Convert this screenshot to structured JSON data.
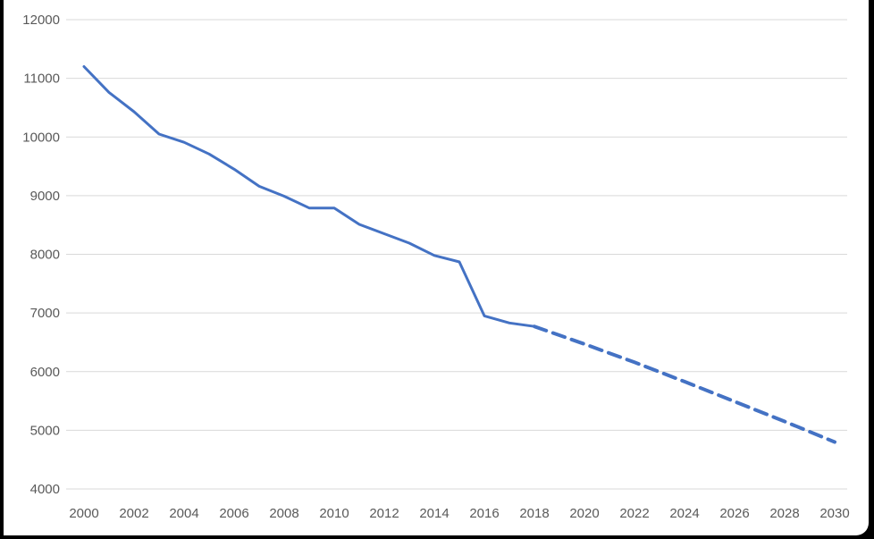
{
  "chart_data": {
    "type": "line",
    "title": "",
    "xlabel": "",
    "ylabel": "",
    "xlim": [
      2000,
      2030
    ],
    "ylim": [
      4000,
      12000
    ],
    "y_ticks": [
      "4000",
      "5000",
      "6000",
      "7000",
      "8000",
      "9000",
      "10000",
      "11000",
      "12000"
    ],
    "x_ticks": [
      "2000",
      "2002",
      "2004",
      "2006",
      "2008",
      "2010",
      "2012",
      "2014",
      "2016",
      "2018",
      "2020",
      "2022",
      "2024",
      "2026",
      "2028",
      "2030"
    ],
    "grid": "horizontal",
    "legend": "none",
    "colors": {
      "line": "#4472C4",
      "grid": "#D9D9D9",
      "tick_text": "#595959"
    },
    "series": [
      {
        "style": "solid",
        "x": [
          2000,
          2001,
          2002,
          2003,
          2004,
          2005,
          2006,
          2007,
          2008,
          2009,
          2010,
          2011,
          2012,
          2013,
          2014,
          2015,
          2016,
          2017,
          2018
        ],
        "y": [
          11200,
          10760,
          10430,
          10050,
          9910,
          9710,
          9450,
          9160,
          8990,
          8790,
          8790,
          8510,
          8350,
          8190,
          7980,
          7870,
          6950,
          6830,
          6770
        ]
      },
      {
        "style": "dashed",
        "x": [
          2018,
          2020,
          2022,
          2024,
          2026,
          2028,
          2030
        ],
        "y": [
          6770,
          6470,
          6160,
          5830,
          5490,
          5150,
          4800
        ]
      }
    ]
  }
}
